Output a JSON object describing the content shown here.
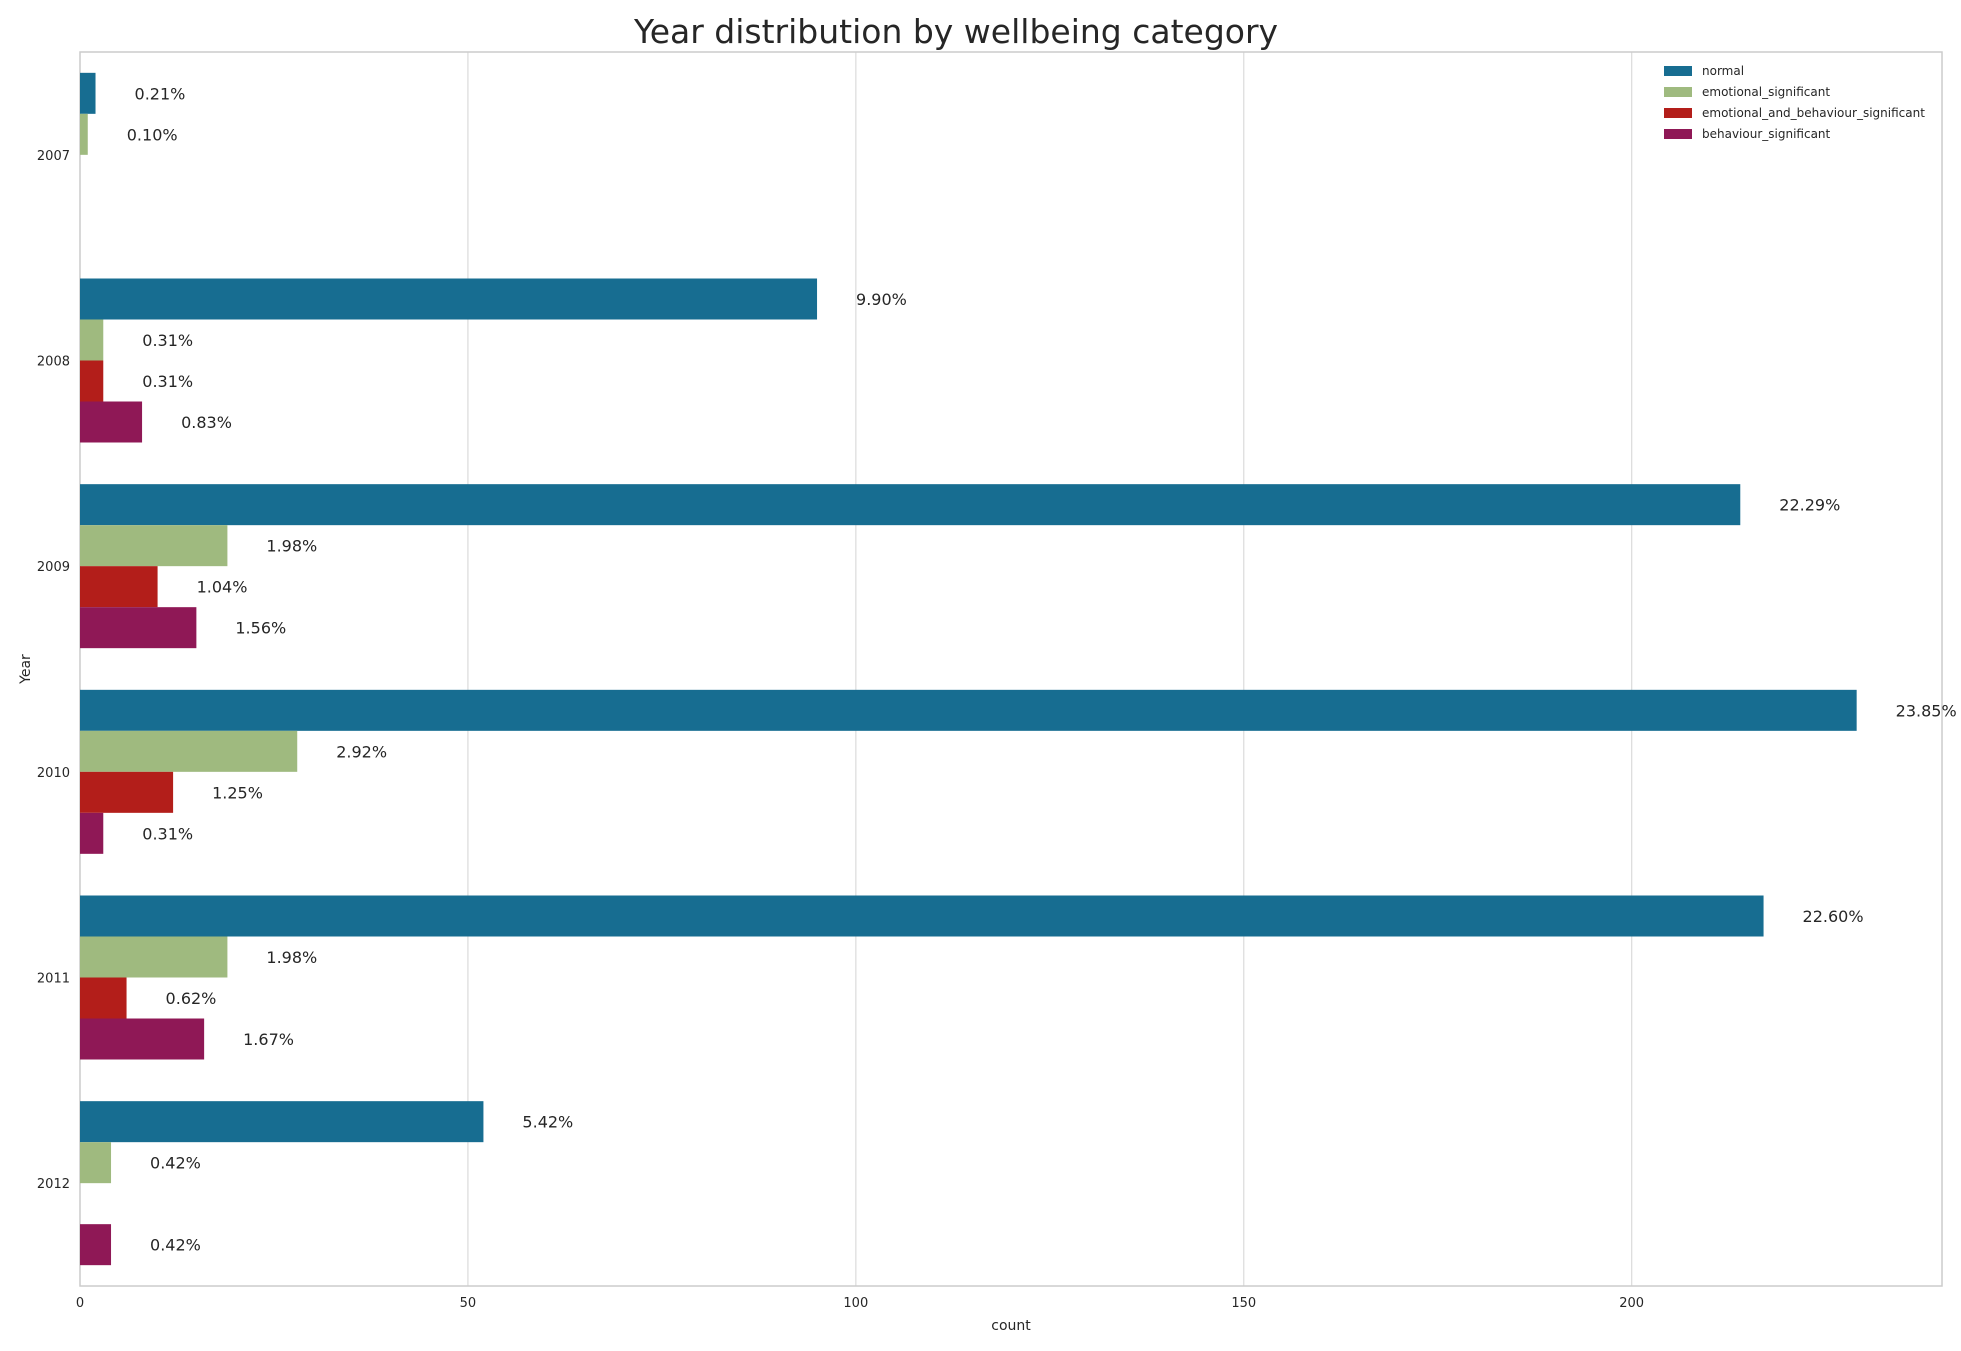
{
  "chart_data": {
    "type": "bar",
    "orientation": "horizontal",
    "title": "Year distribution by wellbeing category",
    "xlabel": "count",
    "ylabel": "Year",
    "categories": [
      "2007",
      "2008",
      "2009",
      "2010",
      "2011",
      "2012"
    ],
    "series": [
      {
        "name": "normal",
        "color": "#176d91",
        "values": [
          2,
          95,
          214,
          229,
          217,
          52
        ],
        "labels": [
          "0.21%",
          "9.90%",
          "22.29%",
          "23.85%",
          "22.60%",
          "5.42%"
        ]
      },
      {
        "name": "emotional_significant",
        "color": "#9fba7f",
        "values": [
          1,
          3,
          19,
          28,
          19,
          4
        ],
        "labels": [
          "0.10%",
          "0.31%",
          "1.98%",
          "2.92%",
          "1.98%",
          "0.42%"
        ]
      },
      {
        "name": "emotional_and_behaviour_significant",
        "color": "#b31e1a",
        "values": [
          null,
          3,
          10,
          12,
          6,
          null
        ],
        "labels": [
          null,
          "0.31%",
          "1.04%",
          "1.25%",
          "0.62%",
          null
        ]
      },
      {
        "name": "behaviour_significant",
        "color": "#8f1856",
        "values": [
          null,
          8,
          15,
          3,
          16,
          4
        ],
        "labels": [
          null,
          "0.83%",
          "1.56%",
          "0.31%",
          "1.67%",
          "0.42%"
        ]
      }
    ],
    "xticks": [
      0,
      50,
      100,
      150,
      200
    ],
    "xlim": [
      0,
      240
    ],
    "grid": true,
    "legend_position": "top-right"
  }
}
